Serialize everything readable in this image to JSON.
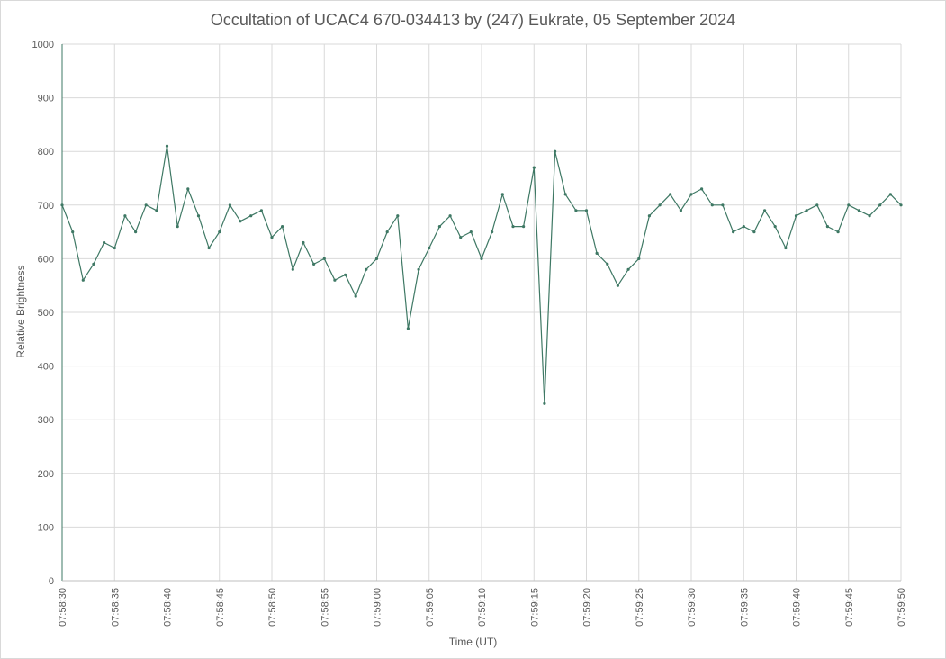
{
  "chart_data": {
    "type": "line",
    "title": "Occultation of UCAC4 670-034413 by (247) Eukrate, 05 September 2024",
    "xlabel": "Time (UT)",
    "ylabel": "Relative Brightness",
    "ylim": [
      0,
      1000
    ],
    "y_ticks": [
      "0",
      "100",
      "200",
      "300",
      "400",
      "500",
      "600",
      "700",
      "800",
      "900",
      "1000"
    ],
    "x_ticks": [
      "07:58:30",
      "07:58:35",
      "07:58:40",
      "07:58:45",
      "07:58:50",
      "07:58:55",
      "07:59:00",
      "07:59:05",
      "07:59:10",
      "07:59:15",
      "07:59:20",
      "07:59:25",
      "07:59:30",
      "07:59:35",
      "07:59:40",
      "07:59:45",
      "07:59:50"
    ],
    "x_range_seconds_from_start": [
      0,
      80
    ],
    "grid": true,
    "legend": "none",
    "series": [
      {
        "color": "#3e7864",
        "marker": "small-dot",
        "x": [
          0,
          1,
          2,
          3,
          4,
          5,
          6,
          7,
          8,
          9,
          10,
          11,
          12,
          13,
          14,
          15,
          16,
          17,
          18,
          19,
          20,
          21,
          22,
          23,
          24,
          25,
          26,
          27,
          28,
          29,
          30,
          31,
          32,
          33,
          34,
          35,
          36,
          37,
          38,
          39,
          40,
          41,
          42,
          43,
          44,
          45,
          46,
          47,
          48,
          49,
          50,
          51,
          52,
          53,
          54,
          55,
          56,
          57,
          58,
          59,
          60,
          61,
          62,
          63,
          64,
          65,
          66,
          67,
          68,
          69,
          70,
          71,
          72,
          73,
          74,
          75,
          76,
          77,
          78,
          79,
          80
        ],
        "values": [
          700,
          650,
          560,
          590,
          630,
          620,
          680,
          650,
          700,
          690,
          810,
          660,
          730,
          680,
          620,
          650,
          700,
          670,
          680,
          690,
          640,
          660,
          580,
          630,
          590,
          600,
          560,
          570,
          530,
          580,
          600,
          650,
          680,
          470,
          580,
          620,
          660,
          680,
          640,
          650,
          600,
          650,
          720,
          660,
          660,
          770,
          330,
          800,
          720,
          690,
          690,
          610,
          590,
          550,
          580,
          600,
          680,
          700,
          720,
          690,
          720,
          730,
          700,
          700,
          650,
          660,
          650,
          690,
          660,
          620,
          680,
          690,
          700,
          660,
          650,
          700,
          690,
          680,
          700,
          720,
          700
        ]
      }
    ]
  }
}
